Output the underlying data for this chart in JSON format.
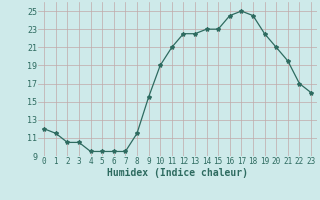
{
  "x": [
    0,
    1,
    2,
    3,
    4,
    5,
    6,
    7,
    8,
    9,
    10,
    11,
    12,
    13,
    14,
    15,
    16,
    17,
    18,
    19,
    20,
    21,
    22,
    23
  ],
  "y": [
    12.0,
    11.5,
    10.5,
    10.5,
    9.5,
    9.5,
    9.5,
    9.5,
    11.5,
    15.5,
    19.0,
    21.0,
    22.5,
    22.5,
    23.0,
    23.0,
    24.5,
    25.0,
    24.5,
    22.5,
    21.0,
    19.5,
    17.0,
    16.0
  ],
  "line_color": "#2e6b60",
  "marker": "*",
  "marker_size": 3,
  "bg_color": "#ceeaea",
  "grid_color": "#c0a8a8",
  "xlabel": "Humidex (Indice chaleur)",
  "ylim": [
    9,
    26
  ],
  "yticks": [
    9,
    11,
    13,
    15,
    17,
    19,
    21,
    23,
    25
  ],
  "xticks": [
    0,
    1,
    2,
    3,
    4,
    5,
    6,
    7,
    8,
    9,
    10,
    11,
    12,
    13,
    14,
    15,
    16,
    17,
    18,
    19,
    20,
    21,
    22,
    23
  ],
  "xlim": [
    -0.5,
    23.5
  ],
  "tick_color": "#2e6b60",
  "label_color": "#2e6b60"
}
